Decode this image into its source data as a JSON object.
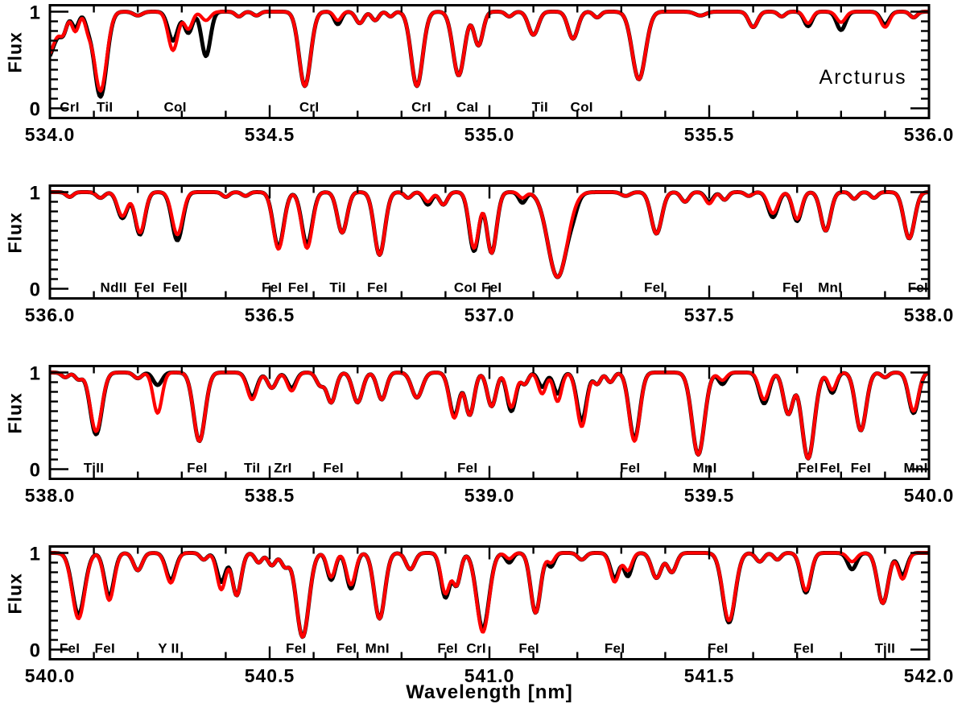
{
  "figure": {
    "star": "Arcturus",
    "xlabel": "Wavelength [nm]",
    "ylabel": "Flux"
  },
  "colors": {
    "observed": "#000000",
    "synthetic": "#ff0000",
    "background": "#ffffff",
    "axis": "#000000"
  },
  "axis": {
    "ylim": [
      -0.1,
      1.067
    ],
    "yticks_labeled": [
      "0",
      "1"
    ],
    "y_minor_step": 0.1,
    "x_major_step": 0.5,
    "x_minor_step": 0.1
  },
  "annotation": {
    "text": "Arcturus",
    "wavelength": 535.85,
    "flux": 0.31,
    "panel": 0
  },
  "chart_data": [
    {
      "type": "line",
      "xlim": [
        534.0,
        536.0
      ],
      "xticks": [
        "534.0",
        "534.5",
        "535.0",
        "535.5",
        "536.0"
      ],
      "series": [
        {
          "name": "observed spectrum",
          "color": "#000000"
        },
        {
          "name": "synthetic spectrum",
          "color": "#ff0000"
        }
      ],
      "line_labels": [
        {
          "x": 534.045,
          "text": "CrI"
        },
        {
          "x": 534.125,
          "text": "TiI"
        },
        {
          "x": 534.285,
          "text": "CoI"
        },
        {
          "x": 534.59,
          "text": "CrI"
        },
        {
          "x": 534.845,
          "text": "CrI"
        },
        {
          "x": 534.95,
          "text": "CaI"
        },
        {
          "x": 535.115,
          "text": "TiI"
        },
        {
          "x": 535.21,
          "text": "CoI"
        }
      ],
      "absorption_lines": [
        [
          533.985,
          0.52,
          0.025,
          0.55
        ],
        [
          534.03,
          0.16,
          0.008
        ],
        [
          534.058,
          0.2,
          0.008,
          0.16
        ],
        [
          534.088,
          0.16,
          0.008,
          0.12
        ],
        [
          534.115,
          0.82,
          0.014,
          0.88
        ],
        [
          534.2,
          0.04,
          0.01
        ],
        [
          534.28,
          0.4,
          0.011,
          0.3
        ],
        [
          534.315,
          0.18,
          0.009,
          0.22
        ],
        [
          534.355,
          0.09,
          0.01,
          0.46
        ],
        [
          534.43,
          0.05,
          0.008
        ],
        [
          534.47,
          0.04,
          0.008
        ],
        [
          534.58,
          0.77,
          0.013
        ],
        [
          534.655,
          0.09,
          0.008,
          0.13
        ],
        [
          534.705,
          0.12,
          0.009
        ],
        [
          534.74,
          0.09,
          0.008
        ],
        [
          534.775,
          0.05,
          0.007
        ],
        [
          534.835,
          0.77,
          0.013
        ],
        [
          534.93,
          0.66,
          0.013
        ],
        [
          534.975,
          0.35,
          0.01
        ],
        [
          535.045,
          0.05,
          0.008
        ],
        [
          535.1,
          0.24,
          0.011
        ],
        [
          535.19,
          0.28,
          0.011
        ],
        [
          535.245,
          0.06,
          0.008
        ],
        [
          535.34,
          0.7,
          0.015
        ],
        [
          535.48,
          0.04,
          0.012
        ],
        [
          535.6,
          0.16,
          0.01
        ],
        [
          535.665,
          0.05,
          0.008
        ],
        [
          535.725,
          0.12,
          0.009,
          0.15
        ],
        [
          535.8,
          0.11,
          0.01,
          0.19
        ],
        [
          535.9,
          0.16,
          0.01,
          0.13
        ],
        [
          535.965,
          0.06,
          0.008
        ]
      ]
    },
    {
      "type": "line",
      "xlim": [
        536.0,
        538.0
      ],
      "xticks": [
        "536.0",
        "536.5",
        "537.0",
        "537.5",
        "538.0"
      ],
      "series": [
        {
          "name": "observed spectrum",
          "color": "#000000"
        },
        {
          "name": "synthetic spectrum",
          "color": "#ff0000"
        }
      ],
      "line_labels": [
        {
          "x": 536.145,
          "text": "NdII"
        },
        {
          "x": 536.215,
          "text": "FeI"
        },
        {
          "x": 536.285,
          "text": "FeII"
        },
        {
          "x": 536.505,
          "text": "FeI"
        },
        {
          "x": 536.565,
          "text": "FeI"
        },
        {
          "x": 536.655,
          "text": "TiI"
        },
        {
          "x": 536.745,
          "text": "FeI"
        },
        {
          "x": 536.945,
          "text": "CoI"
        },
        {
          "x": 537.005,
          "text": "FeI"
        },
        {
          "x": 537.375,
          "text": "FeI"
        },
        {
          "x": 537.69,
          "text": "FeI"
        },
        {
          "x": 537.775,
          "text": "MnI"
        },
        {
          "x": 537.975,
          "text": "FeI"
        }
      ],
      "absorption_lines": [
        [
          536.045,
          0.05,
          0.008
        ],
        [
          536.115,
          0.06,
          0.009
        ],
        [
          536.165,
          0.25,
          0.011,
          0.27
        ],
        [
          536.205,
          0.42,
          0.011,
          0.44
        ],
        [
          536.29,
          0.44,
          0.012,
          0.5
        ],
        [
          536.4,
          0.05,
          0.008
        ],
        [
          536.445,
          0.04,
          0.008
        ],
        [
          536.52,
          0.59,
          0.012,
          0.57
        ],
        [
          536.585,
          0.58,
          0.012,
          0.54
        ],
        [
          536.665,
          0.42,
          0.011
        ],
        [
          536.75,
          0.65,
          0.012
        ],
        [
          536.815,
          0.06,
          0.008
        ],
        [
          536.86,
          0.1,
          0.009,
          0.13
        ],
        [
          536.895,
          0.13,
          0.009
        ],
        [
          536.965,
          0.58,
          0.011,
          0.61
        ],
        [
          537.005,
          0.63,
          0.011
        ],
        [
          537.075,
          0.06,
          0.008,
          0.11
        ],
        [
          537.155,
          0.88,
          0.022
        ],
        [
          537.19,
          0.0,
          0.01,
          0.1
        ],
        [
          537.31,
          0.04,
          0.01
        ],
        [
          537.38,
          0.43,
          0.012
        ],
        [
          537.445,
          0.1,
          0.009
        ],
        [
          537.5,
          0.12,
          0.009,
          0.1
        ],
        [
          537.535,
          0.08,
          0.008
        ],
        [
          537.59,
          0.04,
          0.008
        ],
        [
          537.645,
          0.22,
          0.011,
          0.26
        ],
        [
          537.7,
          0.28,
          0.01,
          0.3
        ],
        [
          537.765,
          0.4,
          0.011
        ],
        [
          537.83,
          0.07,
          0.008
        ],
        [
          537.875,
          0.06,
          0.008
        ],
        [
          537.955,
          0.48,
          0.012
        ]
      ]
    },
    {
      "type": "line",
      "xlim": [
        538.0,
        540.0
      ],
      "xticks": [
        "538.0",
        "538.5",
        "539.0",
        "539.5",
        "540.0"
      ],
      "series": [
        {
          "name": "observed spectrum",
          "color": "#000000"
        },
        {
          "name": "synthetic spectrum",
          "color": "#ff0000"
        }
      ],
      "line_labels": [
        {
          "x": 538.1,
          "text": "TiII"
        },
        {
          "x": 538.335,
          "text": "FeI"
        },
        {
          "x": 538.46,
          "text": "TiI"
        },
        {
          "x": 538.53,
          "text": "ZrI"
        },
        {
          "x": 538.645,
          "text": "FeI"
        },
        {
          "x": 538.95,
          "text": "FeI"
        },
        {
          "x": 539.32,
          "text": "FeI"
        },
        {
          "x": 539.49,
          "text": "MnI"
        },
        {
          "x": 539.725,
          "text": "FeI"
        },
        {
          "x": 539.775,
          "text": "FeI"
        },
        {
          "x": 539.845,
          "text": "FeI"
        },
        {
          "x": 539.97,
          "text": "MnI"
        }
      ],
      "absorption_lines": [
        [
          538.035,
          0.05,
          0.008
        ],
        [
          538.065,
          0.07,
          0.008
        ],
        [
          538.105,
          0.61,
          0.013,
          0.64
        ],
        [
          538.2,
          0.06,
          0.009
        ],
        [
          538.245,
          0.42,
          0.01,
          0.13
        ],
        [
          538.34,
          0.71,
          0.013
        ],
        [
          538.46,
          0.28,
          0.011,
          0.25
        ],
        [
          538.505,
          0.16,
          0.01
        ],
        [
          538.55,
          0.19,
          0.01,
          0.16
        ],
        [
          538.615,
          0.13,
          0.009
        ],
        [
          538.64,
          0.31,
          0.01
        ],
        [
          538.7,
          0.31,
          0.011
        ],
        [
          538.755,
          0.28,
          0.01
        ],
        [
          538.835,
          0.26,
          0.012
        ],
        [
          538.92,
          0.47,
          0.011,
          0.45
        ],
        [
          538.955,
          0.44,
          0.01
        ],
        [
          539.005,
          0.35,
          0.01
        ],
        [
          539.05,
          0.36,
          0.01,
          0.4
        ],
        [
          539.08,
          0.12,
          0.008
        ],
        [
          539.12,
          0.22,
          0.009,
          0.15
        ],
        [
          539.155,
          0.3,
          0.009,
          0.22
        ],
        [
          539.21,
          0.56,
          0.011,
          0.5
        ],
        [
          539.245,
          0.12,
          0.008
        ],
        [
          539.275,
          0.1,
          0.008
        ],
        [
          539.33,
          0.71,
          0.012,
          0.69
        ],
        [
          539.475,
          0.85,
          0.014
        ],
        [
          539.53,
          0.08,
          0.009,
          0.12
        ],
        [
          539.625,
          0.28,
          0.011,
          0.32
        ],
        [
          539.68,
          0.43,
          0.011
        ],
        [
          539.725,
          0.89,
          0.014
        ],
        [
          539.78,
          0.18,
          0.009,
          0.21
        ],
        [
          539.845,
          0.6,
          0.012
        ],
        [
          539.9,
          0.05,
          0.008
        ],
        [
          539.965,
          0.4,
          0.011,
          0.42
        ]
      ]
    },
    {
      "type": "line",
      "xlim": [
        540.0,
        542.0
      ],
      "xticks": [
        "540.0",
        "540.5",
        "541.0",
        "541.5",
        "542.0"
      ],
      "series": [
        {
          "name": "observed spectrum",
          "color": "#000000"
        },
        {
          "name": "synthetic spectrum",
          "color": "#ff0000"
        }
      ],
      "line_labels": [
        {
          "x": 540.045,
          "text": "FeI"
        },
        {
          "x": 540.125,
          "text": "FeI"
        },
        {
          "x": 540.27,
          "text": "Y II"
        },
        {
          "x": 540.56,
          "text": "FeI"
        },
        {
          "x": 540.675,
          "text": "FeI"
        },
        {
          "x": 540.745,
          "text": "MnI"
        },
        {
          "x": 540.905,
          "text": "FeI"
        },
        {
          "x": 540.97,
          "text": "CrI"
        },
        {
          "x": 541.09,
          "text": "FeI"
        },
        {
          "x": 541.285,
          "text": "FeI"
        },
        {
          "x": 541.52,
          "text": "FeI"
        },
        {
          "x": 541.715,
          "text": "FeI"
        },
        {
          "x": 541.9,
          "text": "TiII"
        }
      ],
      "absorption_lines": [
        [
          540.065,
          0.68,
          0.014,
          0.64
        ],
        [
          540.135,
          0.49,
          0.011,
          0.45
        ],
        [
          540.2,
          0.18,
          0.01
        ],
        [
          540.275,
          0.31,
          0.011,
          0.28
        ],
        [
          540.35,
          0.07,
          0.008
        ],
        [
          540.39,
          0.38,
          0.01,
          0.3
        ],
        [
          540.425,
          0.44,
          0.01
        ],
        [
          540.475,
          0.1,
          0.008
        ],
        [
          540.505,
          0.13,
          0.009
        ],
        [
          540.535,
          0.14,
          0.009
        ],
        [
          540.575,
          0.87,
          0.014
        ],
        [
          540.64,
          0.25,
          0.009,
          0.28
        ],
        [
          540.685,
          0.33,
          0.01,
          0.37
        ],
        [
          540.75,
          0.68,
          0.012
        ],
        [
          540.82,
          0.17,
          0.01
        ],
        [
          540.9,
          0.42,
          0.01,
          0.46
        ],
        [
          540.925,
          0.33,
          0.009
        ],
        [
          540.985,
          0.82,
          0.014,
          0.79
        ],
        [
          541.045,
          0.06,
          0.008,
          0.1
        ],
        [
          541.105,
          0.62,
          0.011
        ],
        [
          541.14,
          0.1,
          0.008,
          0.14
        ],
        [
          541.21,
          0.07,
          0.009
        ],
        [
          541.285,
          0.3,
          0.01,
          0.26
        ],
        [
          541.315,
          0.18,
          0.009,
          0.24
        ],
        [
          541.38,
          0.26,
          0.011
        ],
        [
          541.415,
          0.2,
          0.01
        ],
        [
          541.545,
          0.7,
          0.014,
          0.72
        ],
        [
          541.615,
          0.09,
          0.009
        ],
        [
          541.655,
          0.07,
          0.008
        ],
        [
          541.72,
          0.39,
          0.011,
          0.41
        ],
        [
          541.825,
          0.09,
          0.01,
          0.17
        ],
        [
          541.895,
          0.52,
          0.012
        ],
        [
          541.94,
          0.27,
          0.01,
          0.23
        ]
      ]
    }
  ]
}
